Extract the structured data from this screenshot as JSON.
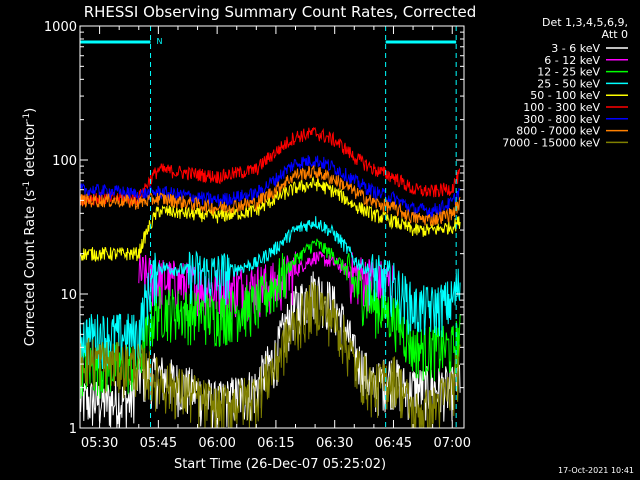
{
  "chart_data": {
    "type": "line",
    "title": "RHESSI Observing Summary Count Rates, Corrected",
    "xlabel": "Start Time (26-Dec-07 05:25:02)",
    "ylabel": "Corrected Count Rate (s⁻¹ detector⁻¹)",
    "ylabel_parts": {
      "prefix": "Corrected Count Rate (s",
      "exp1": "-1",
      "mid": " detector",
      "exp2": "-1",
      "suffix": ")"
    },
    "yscale": "log",
    "ylim": [
      1,
      1000
    ],
    "xlim": [
      "05:25",
      "07:03"
    ],
    "x_ticks": [
      "05:30",
      "05:45",
      "06:00",
      "06:15",
      "06:30",
      "06:45",
      "07:00"
    ],
    "y_ticks": [
      "1",
      "10",
      "100",
      "1000"
    ],
    "timestamp": "17-Oct-2021 10:41",
    "legend_position": "top-right",
    "legend_header": [
      "Det 1,3,4,5,6,9,",
      "Att 0"
    ],
    "night_marker": "N",
    "vertical_markers": [
      "05:43",
      "06:43",
      "07:01"
    ],
    "shaded_intervals": [
      [
        "05:25",
        "05:43"
      ],
      [
        "06:43",
        "07:01"
      ]
    ],
    "series": [
      {
        "name": "3 - 6 keV",
        "color": "#ffffff",
        "x": [
          "05:25",
          "05:35",
          "05:38",
          "05:40",
          "05:45",
          "06:00",
          "06:10",
          "06:15",
          "06:20",
          "06:25",
          "06:30",
          "06:35",
          "06:40",
          "06:44",
          "06:48",
          "06:55",
          "07:00",
          "07:02"
        ],
        "y": [
          1.6,
          1.6,
          1.6,
          2.5,
          2.5,
          1.5,
          2.0,
          3.5,
          8.0,
          11,
          8.0,
          3.5,
          2.0,
          2.5,
          2.0,
          2.0,
          2.0,
          2.5
        ]
      },
      {
        "name": "6 - 12 keV",
        "color": "#ff00ff",
        "x": [
          "05:40",
          "05:45",
          "06:00",
          "06:15",
          "06:20",
          "06:25",
          "06:30",
          "06:35",
          "06:40",
          "06:44",
          "06:45"
        ],
        "y": [
          14,
          13,
          11,
          12,
          15,
          19,
          17,
          14,
          13,
          12,
          12
        ]
      },
      {
        "name": "12 - 25 keV",
        "color": "#00ff00",
        "x": [
          "05:25",
          "05:35",
          "05:40",
          "05:45",
          "06:00",
          "06:10",
          "06:15",
          "06:20",
          "06:25",
          "06:30",
          "06:35",
          "06:40",
          "06:45",
          "06:50",
          "06:55",
          "07:00",
          "07:02"
        ],
        "y": [
          3.0,
          3.0,
          3.0,
          8.0,
          7.0,
          8.5,
          12,
          18,
          24,
          19,
          12,
          8.5,
          7.0,
          4.0,
          4.0,
          4.0,
          5.0
        ]
      },
      {
        "name": "25 - 50 keV",
        "color": "#00ffff",
        "x": [
          "05:25",
          "05:35",
          "05:40",
          "05:45",
          "06:00",
          "06:10",
          "06:15",
          "06:20",
          "06:25",
          "06:30",
          "06:35",
          "06:40",
          "06:45",
          "06:50",
          "06:55",
          "07:00",
          "07:02"
        ],
        "y": [
          5.0,
          5.0,
          5.0,
          16,
          14,
          17,
          22,
          30,
          35,
          28,
          18,
          14,
          12,
          8.0,
          8.0,
          9.0,
          12
        ]
      },
      {
        "name": "50 - 100 keV",
        "color": "#ffff00",
        "x": [
          "05:25",
          "05:35",
          "05:40",
          "05:45",
          "06:00",
          "06:10",
          "06:15",
          "06:20",
          "06:25",
          "06:30",
          "06:35",
          "06:40",
          "06:45",
          "06:50",
          "06:55",
          "07:00",
          "07:02"
        ],
        "y": [
          20,
          20,
          20,
          42,
          38,
          42,
          52,
          62,
          67,
          58,
          46,
          39,
          35,
          30,
          30,
          32,
          35
        ]
      },
      {
        "name": "100 - 300 keV",
        "color": "#ff0000",
        "x": [
          "05:25",
          "05:35",
          "05:40",
          "05:45",
          "06:00",
          "06:10",
          "06:15",
          "06:20",
          "06:25",
          "06:30",
          "06:35",
          "06:40",
          "06:45",
          "06:50",
          "06:55",
          "07:00",
          "07:02"
        ],
        "y": [
          52,
          52,
          52,
          85,
          75,
          85,
          115,
          150,
          160,
          140,
          105,
          85,
          75,
          60,
          58,
          62,
          80
        ]
      },
      {
        "name": "300 - 800 keV",
        "color": "#0000ff",
        "x": [
          "05:25",
          "05:35",
          "05:40",
          "05:45",
          "06:00",
          "06:10",
          "06:15",
          "06:20",
          "06:25",
          "06:30",
          "06:35",
          "06:40",
          "06:45",
          "06:50",
          "06:55",
          "07:00",
          "07:02"
        ],
        "y": [
          60,
          58,
          55,
          58,
          50,
          56,
          72,
          95,
          100,
          88,
          70,
          58,
          52,
          43,
          42,
          48,
          60
        ]
      },
      {
        "name": "800 - 7000 keV",
        "color": "#ff8000",
        "x": [
          "05:25",
          "05:35",
          "05:40",
          "05:45",
          "06:00",
          "06:10",
          "06:15",
          "06:20",
          "06:25",
          "06:30",
          "06:35",
          "06:40",
          "06:45",
          "06:50",
          "06:55",
          "07:00",
          "07:02"
        ],
        "y": [
          50,
          50,
          48,
          52,
          44,
          48,
          60,
          78,
          82,
          72,
          58,
          48,
          44,
          37,
          36,
          40,
          48
        ]
      },
      {
        "name": "7000 - 15000 keV",
        "color": "#808000",
        "x": [
          "05:25",
          "05:35",
          "05:40",
          "05:45",
          "06:00",
          "06:10",
          "06:15",
          "06:20",
          "06:25",
          "06:30",
          "06:35",
          "06:40",
          "06:45",
          "06:50",
          "06:55",
          "07:00",
          "07:02"
        ],
        "y": [
          3.5,
          3.0,
          3.0,
          2.3,
          1.4,
          1.8,
          3.0,
          6.0,
          9.0,
          6.5,
          3.0,
          2.0,
          2.5,
          1.3,
          1.4,
          2.0,
          3.0
        ]
      }
    ]
  }
}
